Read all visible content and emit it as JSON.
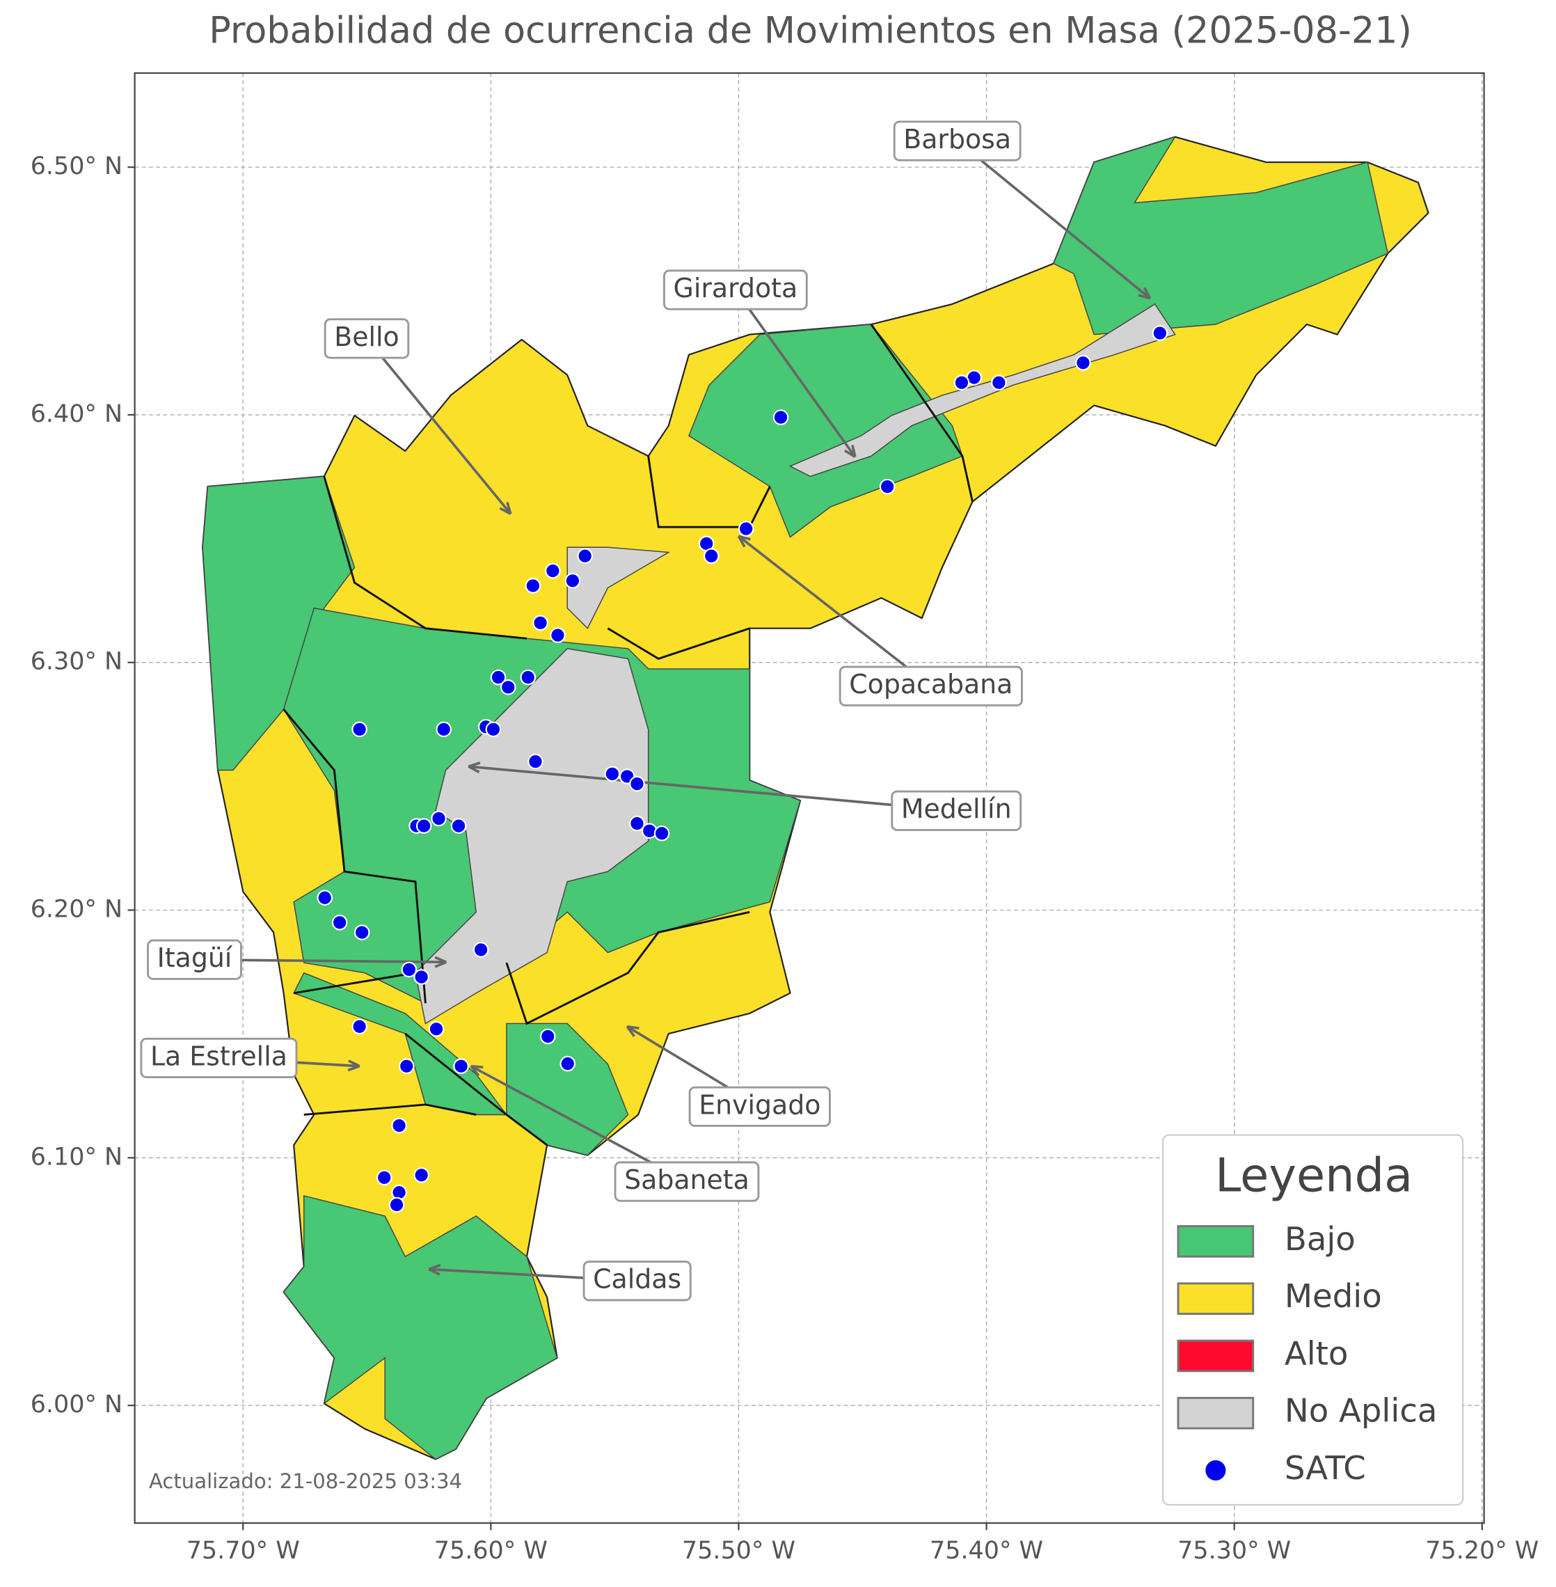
{
  "map": {
    "title": "Probabilidad de ocurrencia de Movimientos en Masa (2025-08-21)",
    "xlim": [
      -75.7437,
      -75.1992
    ],
    "ylim": [
      5.9525,
      6.538
    ],
    "xticks": [
      {
        "value": -75.7,
        "label": "75.70° W"
      },
      {
        "value": -75.6,
        "label": "75.60° W"
      },
      {
        "value": -75.5,
        "label": "75.50° W"
      },
      {
        "value": -75.4,
        "label": "75.40° W"
      },
      {
        "value": -75.3,
        "label": "75.30° W"
      },
      {
        "value": -75.2,
        "label": "75.20° W"
      }
    ],
    "yticks": [
      {
        "value": 6.0,
        "label": "6.00° N"
      },
      {
        "value": 6.1,
        "label": "6.10° N"
      },
      {
        "value": 6.2,
        "label": "6.20° N"
      },
      {
        "value": 6.3,
        "label": "6.30° N"
      },
      {
        "value": 6.4,
        "label": "6.40° N"
      },
      {
        "value": 6.5,
        "label": "6.50° N"
      }
    ],
    "grid": true,
    "legend": {
      "title": "Leyenda",
      "position": "lower right",
      "items": [
        {
          "name": "Bajo",
          "color": "#48c774"
        },
        {
          "name": "Medio",
          "color": "#fbe02a"
        },
        {
          "name": "Alto",
          "color": "#ff0a2f"
        },
        {
          "name": "No Aplica",
          "color": "#d3d3d3"
        },
        {
          "name": "SATC",
          "color": "#0000ee"
        }
      ]
    },
    "satc": {
      "lon": [
        -75.33,
        -75.361,
        -75.395,
        -75.405,
        -75.41,
        -75.483,
        -75.44,
        -75.497,
        -75.513,
        -75.511,
        -75.562,
        -75.575,
        -75.567,
        -75.583,
        -75.58,
        -75.573,
        -75.597,
        -75.593,
        -75.585,
        -75.653,
        -75.619,
        -75.602,
        -75.599,
        -75.582,
        -75.551,
        -75.545,
        -75.541,
        -75.541,
        -75.536,
        -75.531,
        -75.63,
        -75.627,
        -75.621,
        -75.613,
        -75.667,
        -75.661,
        -75.652,
        -75.604,
        -75.633,
        -75.628,
        -75.653,
        -75.622,
        -75.577,
        -75.569,
        -75.634,
        -75.612,
        -75.637,
        -75.643,
        -75.628,
        -75.637,
        -75.638
      ],
      "lat": [
        6.433,
        6.421,
        6.413,
        6.415,
        6.413,
        6.399,
        6.371,
        6.354,
        6.348,
        6.343,
        6.343,
        6.337,
        6.333,
        6.331,
        6.316,
        6.311,
        6.294,
        6.29,
        6.294,
        6.273,
        6.273,
        6.274,
        6.273,
        6.26,
        6.255,
        6.254,
        6.251,
        6.235,
        6.232,
        6.231,
        6.234,
        6.234,
        6.237,
        6.234,
        6.205,
        6.195,
        6.191,
        6.184,
        6.176,
        6.173,
        6.153,
        6.152,
        6.149,
        6.138,
        6.137,
        6.137,
        6.113,
        6.092,
        6.093,
        6.086,
        6.081
      ]
    },
    "annotations": [
      {
        "label": "Barbosa",
        "lon": -75.334,
        "lat": 6.447
      },
      {
        "label": "Girardota",
        "lon": -75.453,
        "lat": 6.383
      },
      {
        "label": "Bello",
        "lon": -75.592,
        "lat": 6.36
      },
      {
        "label": "Copacabana",
        "lon": -75.5,
        "lat": 6.351
      },
      {
        "label": "Medellín",
        "lon": -75.609,
        "lat": 6.258
      },
      {
        "label": "Itagüí",
        "lon": -75.618,
        "lat": 6.179
      },
      {
        "label": "La Estrella",
        "lon": -75.653,
        "lat": 6.137
      },
      {
        "label": "Envigado",
        "lon": -75.545,
        "lat": 6.153
      },
      {
        "label": "Sabaneta",
        "lon": -75.608,
        "lat": 6.137
      },
      {
        "label": "Caldas",
        "lon": -75.625,
        "lat": 6.055
      }
    ],
    "footnote": "Actualizado: 21-08-2025 03:34"
  }
}
